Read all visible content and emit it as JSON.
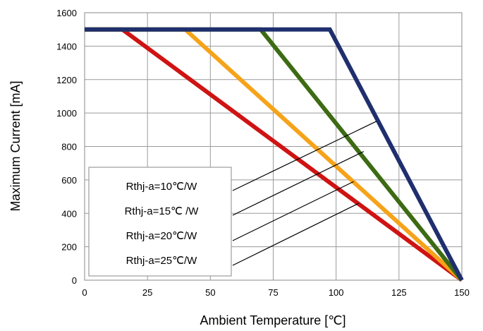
{
  "chart_data": {
    "type": "line",
    "xlabel": "Ambient Temperature [℃]",
    "ylabel": "Maximum Current [mA]",
    "xlim": [
      0,
      150
    ],
    "ylim": [
      0,
      1600
    ],
    "xticks": [
      0,
      25,
      50,
      75,
      100,
      125,
      150
    ],
    "yticks": [
      0,
      200,
      400,
      600,
      800,
      1000,
      1200,
      1400,
      1600
    ],
    "grid": true,
    "legend_placement": "bottom-left",
    "series": [
      {
        "name": "Rthj-a=10℃/W",
        "color": "#1f2f6e",
        "x": [
          0,
          97.5,
          150
        ],
        "y": [
          1500,
          1500,
          0
        ]
      },
      {
        "name": "Rthj-a=15℃ /W",
        "color": "#3d6b14",
        "x": [
          0,
          70,
          150
        ],
        "y": [
          1500,
          1500,
          0
        ]
      },
      {
        "name": "Rthj-a=20℃/W",
        "color": "#f6a31a",
        "x": [
          0,
          40,
          150
        ],
        "y": [
          1500,
          1500,
          0
        ]
      },
      {
        "name": "Rthj-a=25℃/W",
        "color": "#cf1313",
        "x": [
          0,
          15,
          150
        ],
        "y": [
          1500,
          1500,
          0
        ]
      }
    ],
    "annotation_leaders": [
      {
        "label_index": 0,
        "to": [
          116,
          950
        ]
      },
      {
        "label_index": 1,
        "to": [
          111,
          770
        ]
      },
      {
        "label_index": 2,
        "to": [
          107,
          590
        ]
      },
      {
        "label_index": 3,
        "to": [
          109,
          460
        ]
      }
    ]
  }
}
